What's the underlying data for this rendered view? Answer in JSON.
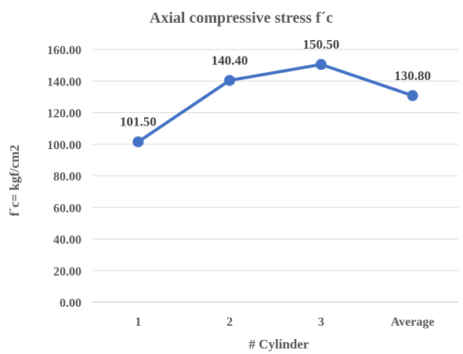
{
  "chart_data": {
    "type": "line",
    "title": "Axial compressive stress f´c",
    "xlabel": "# Cylinder",
    "ylabel": "f´c= kgf/cm2",
    "categories": [
      "1",
      "2",
      "3",
      "Average"
    ],
    "series": [
      {
        "values": [
          101.5,
          140.4,
          150.5,
          130.8
        ],
        "color": "#4472c4"
      }
    ],
    "data_labels": [
      "101.50",
      "140.40",
      "150.50",
      "130.80"
    ],
    "ylim": [
      0,
      160
    ],
    "yticks": [
      0,
      20,
      40,
      60,
      80,
      100,
      120,
      140,
      160
    ],
    "ytick_labels": [
      "0.00",
      "20.00",
      "40.00",
      "60.00",
      "80.00",
      "100.00",
      "120.00",
      "140.00",
      "160.00"
    ],
    "grid": true,
    "legend": "none"
  }
}
